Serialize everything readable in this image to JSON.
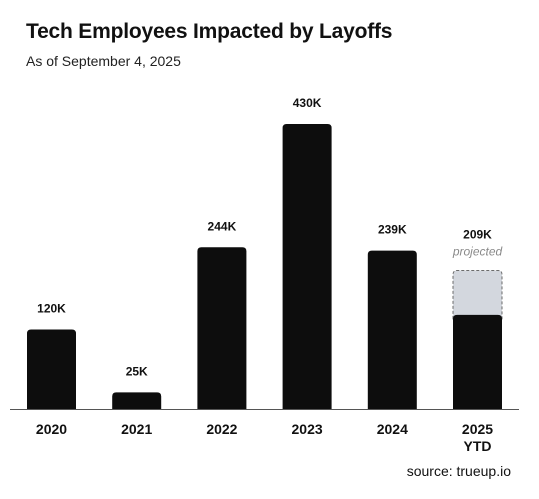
{
  "header": {
    "title": "Tech Employees Impacted by Layoffs",
    "subtitle": "As of September 4, 2025"
  },
  "footer": {
    "source": "source: trueup.io"
  },
  "colors": {
    "bar": "#0d0d0d",
    "projected": "#d3d7de",
    "projected_border": "#6b6b6b",
    "axis": "#555555"
  },
  "chart_data": {
    "type": "bar",
    "title": "Tech Employees Impacted by Layoffs",
    "subtitle": "As of September 4, 2025",
    "categories": [
      {
        "label": "2020",
        "sublabel": ""
      },
      {
        "label": "2021",
        "sublabel": ""
      },
      {
        "label": "2022",
        "sublabel": ""
      },
      {
        "label": "2023",
        "sublabel": ""
      },
      {
        "label": "2024",
        "sublabel": ""
      },
      {
        "label": "2025",
        "sublabel": "YTD"
      }
    ],
    "series": [
      {
        "values": [
          120,
          25,
          244,
          430,
          239,
          142
        ]
      },
      {
        "name": "projected",
        "values": [
          0,
          0,
          0,
          0,
          0,
          67
        ]
      }
    ],
    "value_labels": [
      "120K",
      "25K",
      "244K",
      "430K",
      "239K",
      "209K"
    ],
    "annotations": [
      "",
      "",
      "",
      "",
      "",
      "projected"
    ],
    "units": "thousands of employees",
    "ylim": [
      0,
      430
    ],
    "grid": false,
    "legend": "none"
  }
}
